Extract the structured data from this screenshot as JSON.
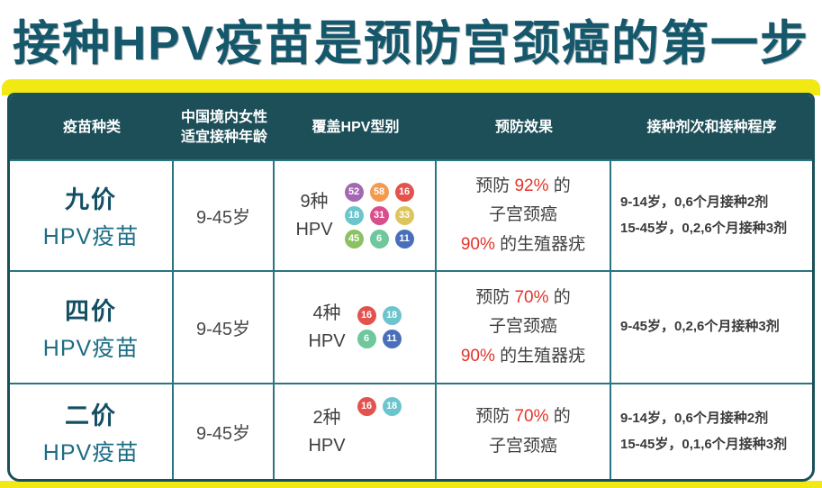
{
  "title": "接种HPV疫苗是预防宫颈癌的第一步",
  "colors": {
    "accent_yellow": "#f1e814",
    "header_teal": "#1d4f58",
    "title_teal": "#15586b",
    "highlight_red": "#e1352a"
  },
  "table": {
    "headers": [
      {
        "line1": "疫苗种类"
      },
      {
        "line1": "中国境内女性",
        "line2": "适宜接种年龄"
      },
      {
        "line1": "覆盖HPV型别"
      },
      {
        "line1": "预防效果"
      },
      {
        "line1": "接种剂次和接种程序"
      }
    ]
  },
  "rows": [
    {
      "name_bold": "九价",
      "name_sub": "HPV疫苗",
      "age": "9-45岁",
      "types_l1": "9种",
      "types_l2": "HPV",
      "badge_cols": 3,
      "badges": [
        {
          "num": "52",
          "color": "#a368b2"
        },
        {
          "num": "58",
          "color": "#f49a50"
        },
        {
          "num": "16",
          "color": "#e4524e"
        },
        {
          "num": "18",
          "color": "#6cc5cc"
        },
        {
          "num": "31",
          "color": "#d94f8c"
        },
        {
          "num": "33",
          "color": "#ddc55c"
        },
        {
          "num": "45",
          "color": "#8cc163"
        },
        {
          "num": "6",
          "color": "#6ec79d"
        },
        {
          "num": "11",
          "color": "#4a6fba"
        }
      ],
      "prevention_lines": [
        [
          {
            "t": "预防 "
          },
          {
            "t": "92%",
            "red": true
          },
          {
            "t": " 的"
          }
        ],
        [
          {
            "t": "子宫颈癌"
          }
        ],
        [
          {
            "t": "90%",
            "red": true
          },
          {
            "t": " 的生殖器疣"
          }
        ]
      ],
      "schedule": [
        "9-14岁，0,6个月接种2剂",
        "15-45岁，0,2,6个月接种3剂"
      ]
    },
    {
      "name_bold": "四价",
      "name_sub": "HPV疫苗",
      "age": "9-45岁",
      "types_l1": "4种",
      "types_l2": "HPV",
      "badge_cols": 2,
      "badges": [
        {
          "num": "16",
          "color": "#e4524e"
        },
        {
          "num": "18",
          "color": "#6cc5cc"
        },
        {
          "num": "6",
          "color": "#6ec79d"
        },
        {
          "num": "11",
          "color": "#4a6fba"
        }
      ],
      "prevention_lines": [
        [
          {
            "t": "预防 "
          },
          {
            "t": "70%",
            "red": true
          },
          {
            "t": " 的"
          }
        ],
        [
          {
            "t": "子宫颈癌"
          }
        ],
        [
          {
            "t": "90%",
            "red": true
          },
          {
            "t": " 的生殖器疣"
          }
        ]
      ],
      "schedule": [
        "9-45岁，0,2,6个月接种3剂"
      ]
    },
    {
      "name_bold": "二价",
      "name_sub": "HPV疫苗",
      "age": "9-45岁",
      "types_l1": "2种",
      "types_l2": "HPV",
      "badge_cols": 2,
      "badges": [
        {
          "num": "16",
          "color": "#e4524e"
        },
        {
          "num": "18",
          "color": "#6cc5cc"
        }
      ],
      "prevention_lines": [
        [
          {
            "t": "预防 "
          },
          {
            "t": "70%",
            "red": true
          },
          {
            "t": " 的"
          }
        ],
        [
          {
            "t": "子宫颈癌"
          }
        ]
      ],
      "schedule": [
        "9-14岁，0,6个月接种2剂",
        "15-45岁，0,1,6个月接种3剂"
      ]
    }
  ]
}
